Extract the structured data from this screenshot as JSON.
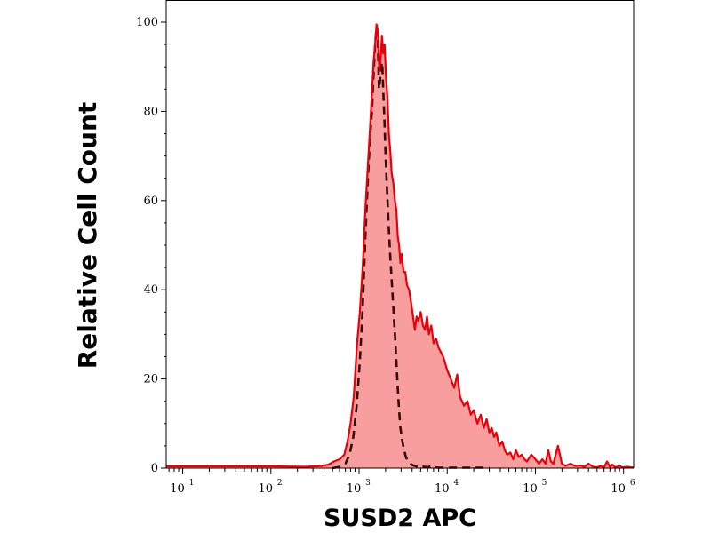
{
  "chart_data": {
    "type": "area",
    "xlabel": "SUSD2 APC",
    "ylabel": "Relative Cell Count",
    "xscale": "log",
    "xlim": [
      6.5,
      1300000
    ],
    "ylim": [
      0,
      100
    ],
    "y_ticks": [
      {
        "value": 0,
        "label": "0"
      },
      {
        "value": 20,
        "label": "20"
      },
      {
        "value": 40,
        "label": "40"
      },
      {
        "value": 60,
        "label": "60"
      },
      {
        "value": 80,
        "label": "80"
      },
      {
        "value": 100,
        "label": "100"
      }
    ],
    "x_ticks": [
      {
        "value": 10,
        "base": "10",
        "exp": "1"
      },
      {
        "value": 100,
        "base": "10",
        "exp": "2"
      },
      {
        "value": 1000,
        "base": "10",
        "exp": "3"
      },
      {
        "value": 10000,
        "base": "10",
        "exp": "4"
      },
      {
        "value": 100000,
        "base": "10",
        "exp": "5"
      },
      {
        "value": 1000000,
        "base": "10",
        "exp": "6"
      }
    ],
    "grid": false,
    "legend": "none",
    "series": [
      {
        "style": "filled solid",
        "line_color": "#e8000b",
        "fill_color": "#f99e9e",
        "x": [
          6.5,
          30,
          100,
          250,
          380,
          450,
          520,
          600,
          680,
          740,
          800,
          870,
          950,
          1020,
          1100,
          1180,
          1260,
          1330,
          1400,
          1460,
          1520,
          1580,
          1640,
          1700,
          1760,
          1820,
          1880,
          1950,
          2020,
          2100,
          2180,
          2260,
          2350,
          2450,
          2550,
          2650,
          2750,
          2850,
          2950,
          3050,
          3200,
          3350,
          3500,
          3700,
          3900,
          4100,
          4300,
          4500,
          4700,
          5000,
          5300,
          5600,
          5900,
          6200,
          6600,
          7000,
          7500,
          8000,
          8500,
          9000,
          10000,
          11000,
          12000,
          13000,
          14000,
          15500,
          17000,
          18500,
          20000,
          22000,
          24000,
          26000,
          28000,
          30000,
          32000,
          34000,
          36000,
          39000,
          42000,
          45000,
          48000,
          52000,
          56000,
          60000,
          65000,
          70000,
          75000,
          80000,
          90000,
          100000,
          110000,
          120000,
          130000,
          140000,
          150000,
          160000,
          180000,
          200000,
          220000,
          250000,
          280000,
          320000,
          360000,
          400000,
          450000,
          500000,
          550000,
          600000,
          650000,
          700000,
          750000,
          800000,
          850000,
          900000,
          950000,
          1000000,
          1100000,
          1200000,
          1300000
        ],
        "y": [
          0.4,
          0.4,
          0.4,
          0.3,
          0.5,
          0.8,
          1.5,
          2.0,
          3.0,
          6.0,
          10.0,
          16.0,
          28.0,
          35.0,
          45.0,
          58.0,
          68.0,
          76.0,
          84.0,
          91.0,
          95.0,
          99.5,
          98.0,
          89.0,
          92.0,
          97.0,
          93.0,
          95.0,
          88.0,
          83.0,
          75.0,
          71.0,
          66.0,
          64.0,
          60.0,
          58.0,
          52.0,
          50.0,
          46.0,
          48.0,
          44.0,
          44.0,
          41.0,
          40.0,
          37.0,
          34.0,
          31.0,
          34.0,
          33.0,
          35.0,
          32.0,
          31.0,
          34.0,
          30.0,
          32.0,
          28.0,
          29.0,
          27.0,
          26.0,
          25.0,
          22.0,
          20.0,
          18.0,
          21.0,
          16.0,
          14.0,
          15.0,
          12.0,
          13.0,
          10.0,
          12.0,
          9.0,
          11.0,
          8.0,
          9.0,
          7.0,
          8.0,
          5.0,
          6.0,
          4.0,
          3.0,
          3.5,
          2.0,
          4.0,
          2.5,
          3.0,
          2.0,
          1.5,
          3.0,
          2.0,
          1.0,
          2.0,
          1.0,
          4.0,
          1.5,
          1.0,
          5.0,
          1.0,
          0.5,
          1.0,
          0.5,
          0.6,
          0.3,
          1.0,
          0.3,
          0.2,
          0.5,
          0.2,
          1.5,
          0.3,
          0.8,
          0.2,
          0.3,
          0.6,
          0.2,
          0.2,
          0.3,
          0.2,
          0.1
        ]
      },
      {
        "style": "dashed",
        "line_color": "#3a0a0a",
        "x": [
          500,
          600,
          700,
          780,
          860,
          940,
          1020,
          1100,
          1180,
          1260,
          1330,
          1400,
          1460,
          1520,
          1580,
          1630,
          1680,
          1730,
          1780,
          1830,
          1880,
          1940,
          2000,
          2080,
          2160,
          2250,
          2350,
          2450,
          2550,
          2650,
          2750,
          2850,
          2950,
          3100,
          3250,
          3400,
          3600,
          3800,
          4000,
          4300,
          4600,
          5000,
          5500,
          6000,
          6500,
          7000,
          8000,
          10000,
          13000,
          20000,
          30000
        ],
        "y": [
          0.0,
          0.3,
          1.0,
          3.0,
          7.0,
          14.0,
          24.0,
          36.0,
          52.0,
          65.0,
          74.0,
          80.0,
          88.0,
          95.0,
          99.0,
          97.0,
          85.0,
          87.0,
          90.0,
          91.0,
          85.0,
          78.0,
          70.0,
          62.0,
          55.0,
          48.0,
          42.0,
          36.0,
          30.0,
          24.0,
          18.0,
          13.0,
          9.0,
          6.0,
          4.0,
          2.5,
          1.5,
          1.0,
          0.7,
          0.5,
          0.3,
          0.5,
          0.3,
          0.2,
          0.4,
          0.2,
          0.1,
          0.1,
          0.1,
          0.1,
          0.1
        ]
      }
    ]
  }
}
